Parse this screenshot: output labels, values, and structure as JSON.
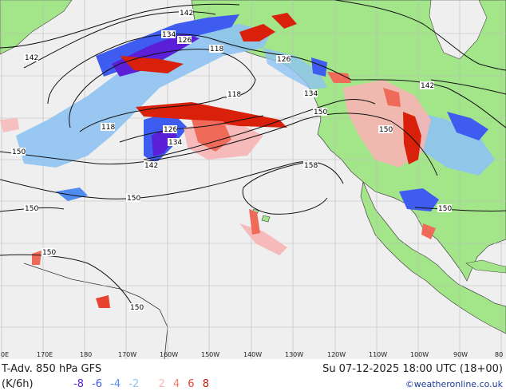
{
  "map": {
    "colors": {
      "ocean": "#efefef",
      "land": "#a3e68a",
      "grid": "#b9b9b9",
      "contour": "#111111",
      "neg_strong": "#5a1fd6",
      "neg_mid": "#3f5cf0",
      "neg_light": "#6fb0f0",
      "pos_light": "#f7b4b4",
      "pos_mid": "#f06a5a",
      "pos_strong": "#d8200a"
    },
    "contour_labels": [
      "142",
      "134",
      "126",
      "118",
      "142",
      "118",
      "126",
      "134",
      "142",
      "150",
      "118",
      "126",
      "134",
      "142",
      "150",
      "158",
      "150",
      "150",
      "150",
      "150",
      "150",
      "150"
    ],
    "lon_ticks": [
      "0E",
      "170E",
      "180",
      "170W",
      "160W",
      "150W",
      "140W",
      "130W",
      "120W",
      "110W",
      "100W",
      "90W",
      "80"
    ]
  },
  "footer": {
    "title": "T-Adv. 850 hPa  GFS",
    "datetime": "Su 07-12-2025 18:00 UTC (18+00)",
    "unit": "(K/6h)",
    "legend_neg": [
      "-8",
      "-6",
      "-4",
      "-2"
    ],
    "legend_pos": [
      "2",
      "4",
      "6",
      "8"
    ],
    "legend_colors": [
      "#5a1fd6",
      "#3f5cf0",
      "#4f8ef0",
      "#8ec3f2",
      "#f7b4b4",
      "#f07e70",
      "#e8432f",
      "#c81a0a"
    ],
    "credit": "©weatheronline.co.uk"
  }
}
